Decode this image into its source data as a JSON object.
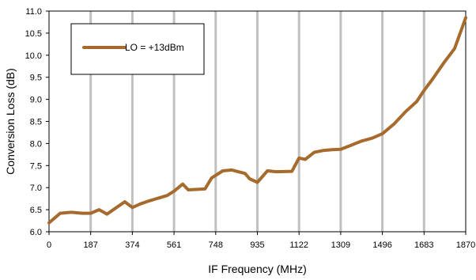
{
  "chart_data": {
    "type": "line",
    "xlabel": "IF Frequency (MHz)",
    "ylabel": "Conversion Loss (dB)",
    "xlim": [
      0,
      1870
    ],
    "ylim": [
      6.0,
      11.0
    ],
    "x_ticks": [
      0,
      187,
      374,
      561,
      748,
      935,
      1122,
      1309,
      1496,
      1683,
      1870
    ],
    "x_tick_labels": [
      "0",
      "187",
      "374",
      "561",
      "748",
      "935",
      "1122",
      "1309",
      "1496",
      "1683",
      "1870"
    ],
    "y_ticks": [
      6.0,
      6.5,
      7.0,
      7.5,
      8.0,
      8.5,
      9.0,
      9.5,
      10.0,
      10.5,
      11.0
    ],
    "y_tick_labels": [
      "6.0",
      "6.5",
      "7.0",
      "7.5",
      "8.0",
      "8.5",
      "9.0",
      "9.5",
      "10.0",
      "10.5",
      "11.0"
    ],
    "grid": "vertical",
    "legend_position": "top-left",
    "series": [
      {
        "name": "LO = +13dBm",
        "color": "#a66a2c",
        "x": [
          0,
          50,
          100,
          150,
          187,
          225,
          260,
          340,
          374,
          410,
          450,
          530,
          561,
          600,
          625,
          700,
          730,
          780,
          820,
          880,
          900,
          935,
          980,
          1020,
          1090,
          1122,
          1150,
          1190,
          1230,
          1270,
          1309,
          1350,
          1400,
          1450,
          1496,
          1550,
          1600,
          1650,
          1683,
          1720,
          1775,
          1820,
          1870
        ],
        "y": [
          6.2,
          6.42,
          6.44,
          6.42,
          6.42,
          6.5,
          6.4,
          6.68,
          6.55,
          6.63,
          6.7,
          6.82,
          6.92,
          7.08,
          6.95,
          6.97,
          7.22,
          7.38,
          7.4,
          7.32,
          7.2,
          7.12,
          7.38,
          7.36,
          7.37,
          7.67,
          7.64,
          7.8,
          7.84,
          7.86,
          7.87,
          7.95,
          8.05,
          8.12,
          8.22,
          8.45,
          8.72,
          8.95,
          9.2,
          9.45,
          9.85,
          10.15,
          10.85
        ]
      }
    ]
  }
}
